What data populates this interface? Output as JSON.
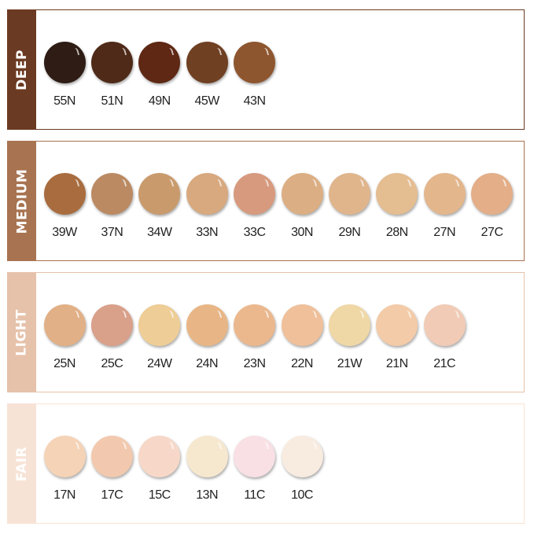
{
  "groups": [
    {
      "name": "DEEP",
      "color": "#6b3a22",
      "shades": [
        {
          "label": "55N",
          "color": "#2e1c15"
        },
        {
          "label": "51N",
          "color": "#4f2a18"
        },
        {
          "label": "49N",
          "color": "#5e2814"
        },
        {
          "label": "45W",
          "color": "#704023"
        },
        {
          "label": "43N",
          "color": "#8e562f"
        }
      ]
    },
    {
      "name": "MEDIUM",
      "color": "#a87350",
      "shades": [
        {
          "label": "39W",
          "color": "#a86c3e"
        },
        {
          "label": "37N",
          "color": "#bb8a62"
        },
        {
          "label": "34W",
          "color": "#c99a6c"
        },
        {
          "label": "33N",
          "color": "#d8a87e"
        },
        {
          "label": "33C",
          "color": "#d79a7e"
        },
        {
          "label": "30N",
          "color": "#dcae83"
        },
        {
          "label": "29N",
          "color": "#e0b58c"
        },
        {
          "label": "28N",
          "color": "#e4bd91"
        },
        {
          "label": "27N",
          "color": "#e3b68c"
        },
        {
          "label": "27C",
          "color": "#e3ae88"
        }
      ]
    },
    {
      "name": "LIGHT",
      "color": "#e6c2ab",
      "shades": [
        {
          "label": "25N",
          "color": "#e2b086"
        },
        {
          "label": "25C",
          "color": "#d9a08a"
        },
        {
          "label": "24W",
          "color": "#eecd96"
        },
        {
          "label": "24N",
          "color": "#e8b686"
        },
        {
          "label": "23N",
          "color": "#ebb88e"
        },
        {
          "label": "22N",
          "color": "#efc09a"
        },
        {
          "label": "21W",
          "color": "#efd8a6"
        },
        {
          "label": "21N",
          "color": "#f3cba8"
        },
        {
          "label": "21C",
          "color": "#f1cbb6"
        }
      ]
    },
    {
      "name": "FAIR",
      "color": "#f7e3d6",
      "shades": [
        {
          "label": "17N",
          "color": "#f5d3b6"
        },
        {
          "label": "17C",
          "color": "#f2c9ae"
        },
        {
          "label": "15C",
          "color": "#f7d8c8"
        },
        {
          "label": "13N",
          "color": "#f6e8cf"
        },
        {
          "label": "11C",
          "color": "#f8e0e4"
        },
        {
          "label": "10C",
          "color": "#f8ebe0"
        }
      ]
    }
  ]
}
